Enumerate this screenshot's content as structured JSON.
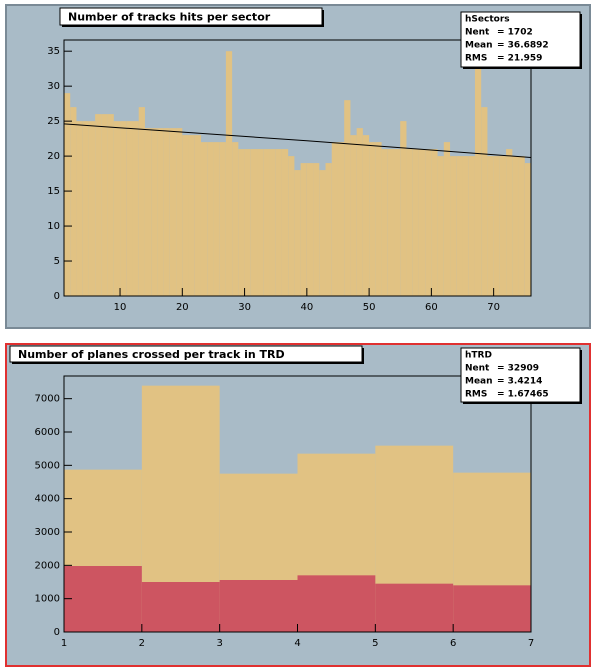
{
  "chart_data": [
    {
      "type": "histogram",
      "title": "Number of tracks hits per sector",
      "stats": {
        "name": "hSectors",
        "entries": [
          {
            "label": "Nent",
            "value": "= 1702"
          },
          {
            "label": "Mean",
            "value": "= 36.6892"
          },
          {
            "label": "RMS",
            "value": "= 21.959"
          }
        ]
      },
      "bins": [
        1,
        2,
        3,
        4,
        5,
        6,
        7,
        8,
        9,
        10,
        11,
        12,
        13,
        14,
        15,
        16,
        17,
        18,
        19,
        20,
        21,
        22,
        23,
        24,
        25,
        26,
        27,
        28,
        29,
        30,
        31,
        32,
        33,
        34,
        35,
        36,
        37,
        38,
        39,
        40,
        41,
        42,
        43,
        44,
        45,
        46,
        47,
        48,
        49,
        50,
        51,
        52,
        53,
        54,
        55,
        56,
        57,
        58,
        59,
        60,
        61,
        62,
        63,
        64,
        65,
        66,
        67,
        68,
        69,
        70,
        71,
        72,
        73,
        74,
        75,
        76
      ],
      "series": [
        {
          "color": "#e1c283",
          "values": [
            29,
            27,
            25,
            25,
            25,
            26,
            26,
            26,
            25,
            25,
            25,
            25,
            27,
            24,
            24,
            24,
            24,
            24,
            24,
            23,
            23,
            23,
            22,
            22,
            22,
            22,
            35,
            22,
            21,
            21,
            21,
            21,
            21,
            21,
            21,
            21,
            20,
            18,
            19,
            19,
            19,
            18,
            19,
            22,
            22,
            28,
            23,
            24,
            23,
            22,
            22,
            21,
            21,
            21,
            25,
            21,
            21,
            21,
            21,
            21,
            20,
            22,
            20,
            20,
            20,
            20,
            33,
            27,
            20,
            20,
            20,
            21,
            20,
            20,
            19
          ]
        }
      ],
      "fit": {
        "x": [
          1,
          40,
          76
        ],
        "values": [
          24.6,
          22.2,
          19.8
        ]
      },
      "xlim": [
        1,
        76
      ],
      "xticks": [
        10,
        20,
        30,
        40,
        50,
        60,
        70
      ],
      "ylim": [
        0,
        36.6
      ],
      "yticks": [
        0,
        5,
        10,
        15,
        20,
        25,
        30,
        35
      ]
    },
    {
      "type": "histogram",
      "title": "Number of planes crossed per track in TRD",
      "stats": {
        "name": "hTRD",
        "entries": [
          {
            "label": "Nent",
            "value": "= 32909"
          },
          {
            "label": "Mean",
            "value": "= 3.4214"
          },
          {
            "label": "RMS",
            "value": "= 1.67465"
          }
        ]
      },
      "bins": [
        1,
        2,
        3,
        4,
        5,
        6,
        7
      ],
      "series": [
        {
          "color": "#e1c283",
          "values": [
            4870,
            7390,
            4750,
            5350,
            5590,
            4780
          ]
        },
        {
          "color": "#cd5561",
          "values": [
            1980,
            1500,
            1560,
            1700,
            1450,
            1400
          ]
        }
      ],
      "xlim": [
        1,
        7
      ],
      "xticks": [
        1,
        2,
        3,
        4,
        5,
        6,
        7
      ],
      "ylim": [
        0,
        7680
      ],
      "yticks": [
        0,
        1000,
        2000,
        3000,
        4000,
        5000,
        6000,
        7000
      ]
    }
  ]
}
